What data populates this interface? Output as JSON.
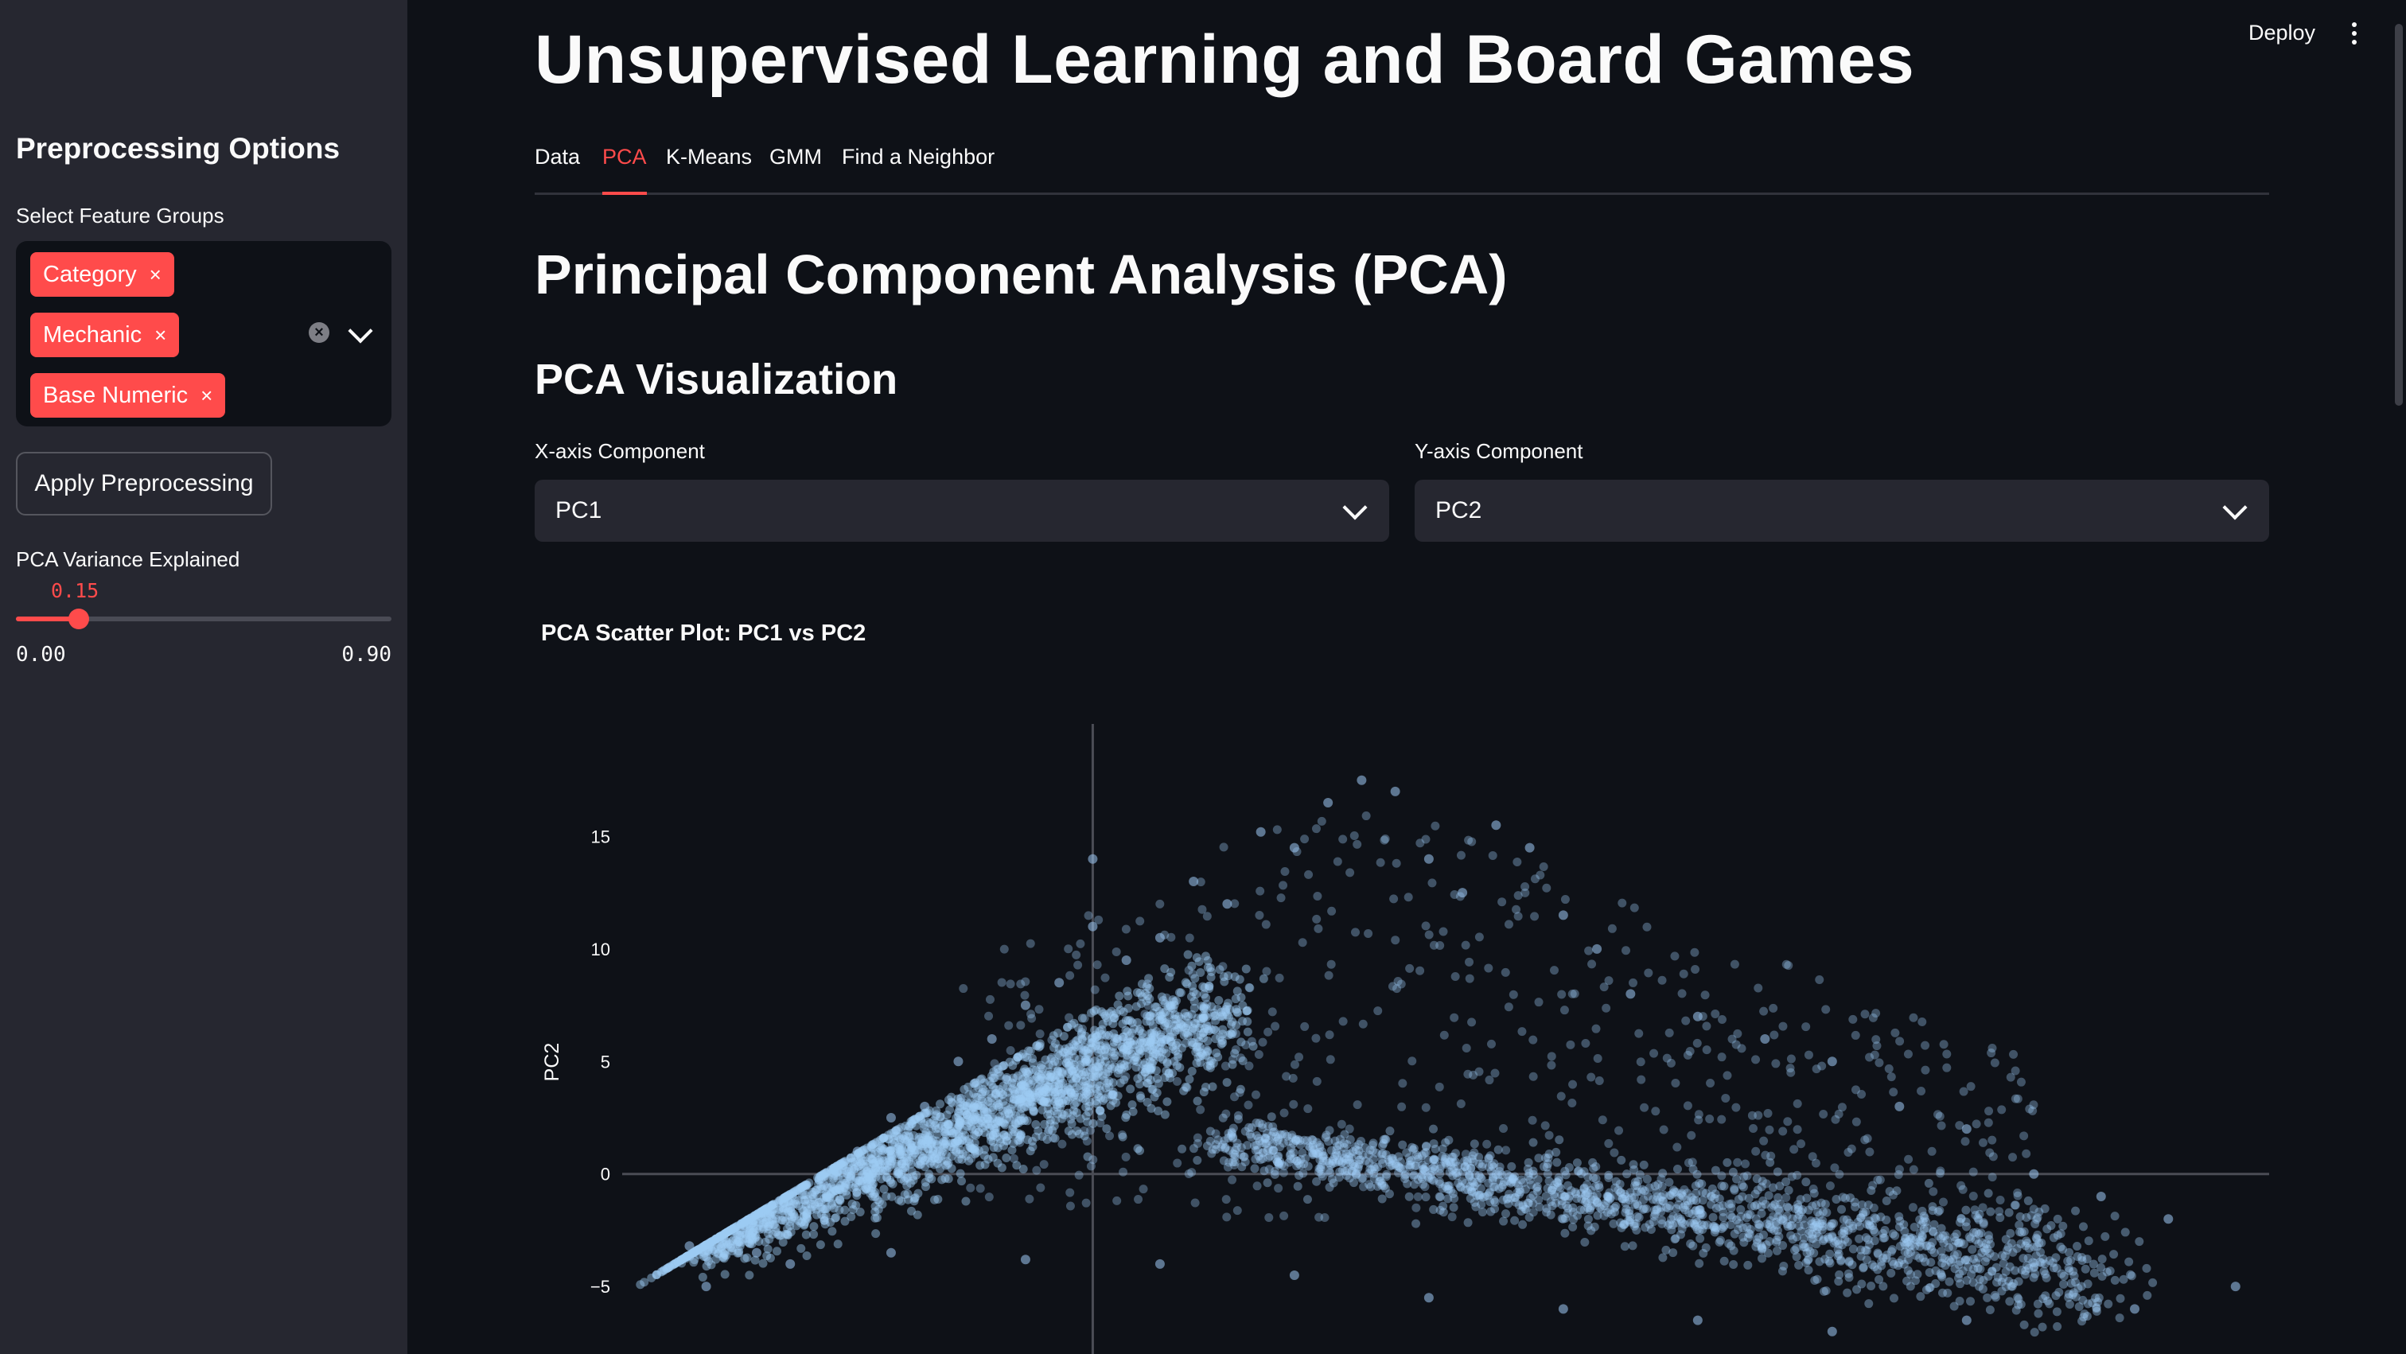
{
  "header": {
    "deploy_label": "Deploy",
    "menu_icon": "kebab-menu-icon"
  },
  "sidebar": {
    "title": "Preprocessing Options",
    "feature_groups_label": "Select Feature Groups",
    "selected_groups": [
      "Category",
      "Mechanic",
      "Base Numeric"
    ],
    "remove_symbol": "×",
    "apply_button": "Apply Preprocessing",
    "pca_slider": {
      "label": "PCA Variance Explained",
      "value": "0.15",
      "min": "0.00",
      "max": "0.90",
      "value_fraction": 0.1667
    }
  },
  "main": {
    "title": "Unsupervised Learning and Board Games",
    "tabs": [
      {
        "label": "Data",
        "active": false
      },
      {
        "label": "PCA",
        "active": true
      },
      {
        "label": "K-Means",
        "active": false
      },
      {
        "label": "GMM",
        "active": false
      },
      {
        "label": "Find a Neighbor",
        "active": false
      }
    ],
    "section_title": "Principal Component Analysis (PCA)",
    "subsection_title": "PCA Visualization",
    "x_select": {
      "label": "X-axis Component",
      "value": "PC1"
    },
    "y_select": {
      "label": "Y-axis Component",
      "value": "PC2"
    }
  },
  "colors": {
    "accent": "#ff4b4b",
    "background": "#0e1117",
    "sidebar": "#262730",
    "point": "#9ecbf5"
  },
  "chart_data": {
    "type": "scatter",
    "title": "PCA Scatter Plot: PC1 vs PC2",
    "xlabel": "",
    "ylabel": "PC2",
    "y_ticks": [
      "15",
      "10",
      "5",
      "0",
      "−5"
    ],
    "y_tick_values": [
      15,
      10,
      5,
      0,
      -5
    ],
    "ylim": [
      -8,
      20
    ],
    "xlim": [
      -14,
      35
    ],
    "grid": false,
    "zero_lines": true,
    "point_color": "#9ecbf5",
    "series": [
      {
        "points": [
          [
            -12,
            -3.2
          ],
          [
            -11.5,
            -5
          ],
          [
            -10,
            -3.5
          ],
          [
            -9,
            -1.5
          ],
          [
            -8,
            -0.5
          ],
          [
            -7,
            1
          ],
          [
            -6,
            2.5
          ],
          [
            -5,
            3
          ],
          [
            -4,
            5
          ],
          [
            -3,
            6
          ],
          [
            -2,
            7.5
          ],
          [
            -1,
            8.5
          ],
          [
            0,
            11
          ],
          [
            0,
            14
          ],
          [
            1,
            9.5
          ],
          [
            2,
            10.5
          ],
          [
            3,
            13
          ],
          [
            4,
            12
          ],
          [
            5,
            15.2
          ],
          [
            6,
            14.5
          ],
          [
            7,
            16.5
          ],
          [
            8,
            17.5
          ],
          [
            9,
            17
          ],
          [
            10,
            14
          ],
          [
            11,
            12.5
          ],
          [
            12,
            15.5
          ],
          [
            13,
            14.5
          ],
          [
            14,
            11.5
          ],
          [
            15,
            10
          ],
          [
            16,
            8
          ],
          [
            18,
            7
          ],
          [
            20,
            6
          ],
          [
            22,
            5
          ],
          [
            24,
            3
          ],
          [
            26,
            2
          ],
          [
            28,
            0
          ],
          [
            30,
            -1
          ],
          [
            32,
            -2
          ],
          [
            34,
            -5
          ],
          [
            31,
            -6
          ],
          [
            26,
            -6.5
          ],
          [
            22,
            -7
          ],
          [
            18,
            -6.5
          ],
          [
            14,
            -6
          ],
          [
            10,
            -5.5
          ],
          [
            6,
            -4.5
          ],
          [
            2,
            -4
          ],
          [
            -2,
            -3.8
          ],
          [
            -6,
            -3.5
          ],
          [
            -9,
            -4
          ]
        ]
      }
    ]
  }
}
